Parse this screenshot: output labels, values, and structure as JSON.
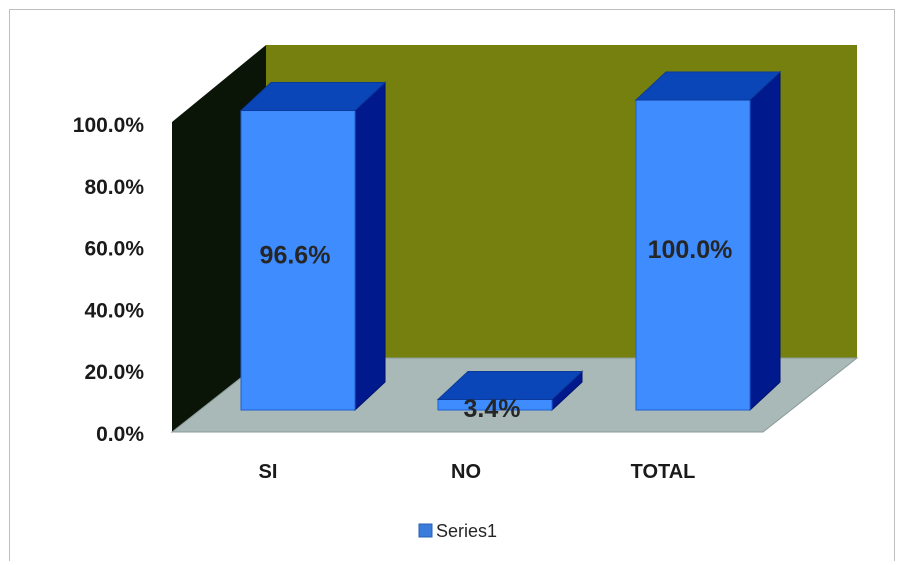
{
  "chart_data": {
    "type": "bar",
    "categories": [
      "SI",
      "NO",
      "TOTAL"
    ],
    "series": [
      {
        "name": "Series1",
        "values": [
          96.6,
          3.4,
          100.0
        ]
      }
    ],
    "data_labels": [
      "96.6%",
      "3.4%",
      "100.0%"
    ],
    "y_ticks": [
      "0.0%",
      "20.0%",
      "40.0%",
      "60.0%",
      "80.0%",
      "100.0%"
    ],
    "ylim": [
      0,
      100
    ],
    "legend_position": "bottom",
    "grid": false,
    "style": "3d-column",
    "colors": {
      "bar_front": "#3f8cff",
      "bar_top": "#0b46b8",
      "bar_side": "#00198c",
      "back_wall": "#76800f",
      "side_wall": "#0a1508",
      "floor": "#a9b9b7",
      "legend_swatch": "#3c7ddb"
    }
  }
}
